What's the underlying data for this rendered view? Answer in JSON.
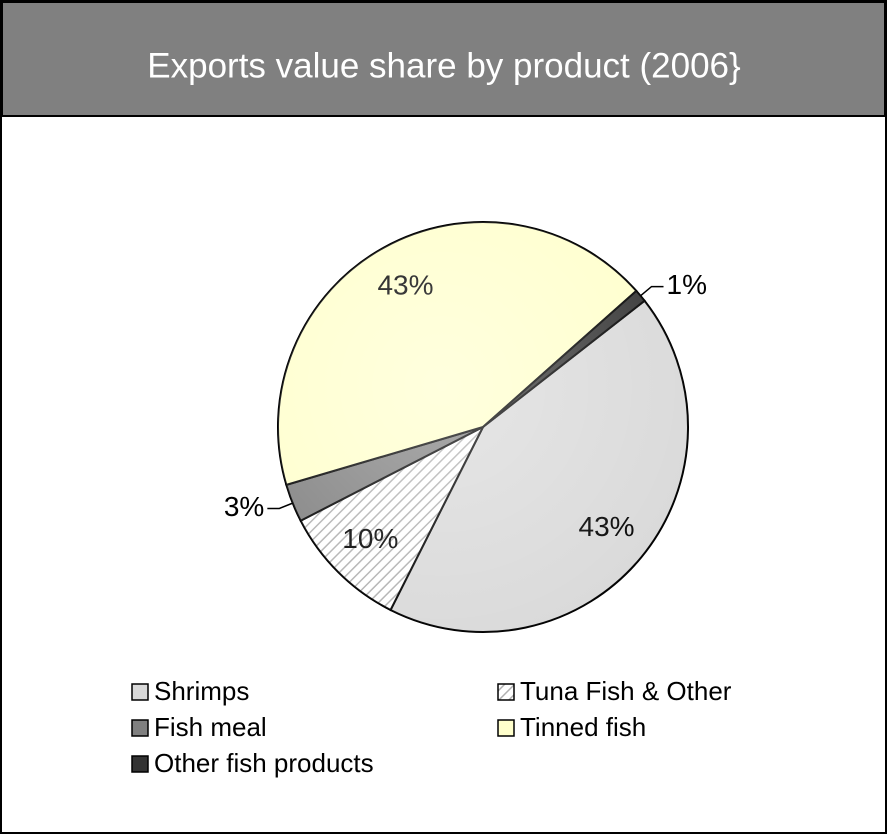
{
  "chart_data": {
    "type": "pie",
    "title": "Exports value share by product (2006}",
    "categories": [
      "Shrimps",
      "Tuna Fish & Other",
      "Fish meal",
      "Tinned fish",
      "Other fish products"
    ],
    "values": [
      43,
      10,
      3,
      43,
      1
    ],
    "value_labels": [
      "43%",
      "10%",
      "3%",
      "43%",
      "1%"
    ],
    "colors": [
      "#d9d9d9",
      "#e6e6e6",
      "#808080",
      "#ffffcc",
      "#333333"
    ],
    "hatched": [
      false,
      true,
      false,
      false,
      false
    ],
    "legend": "bottom"
  }
}
